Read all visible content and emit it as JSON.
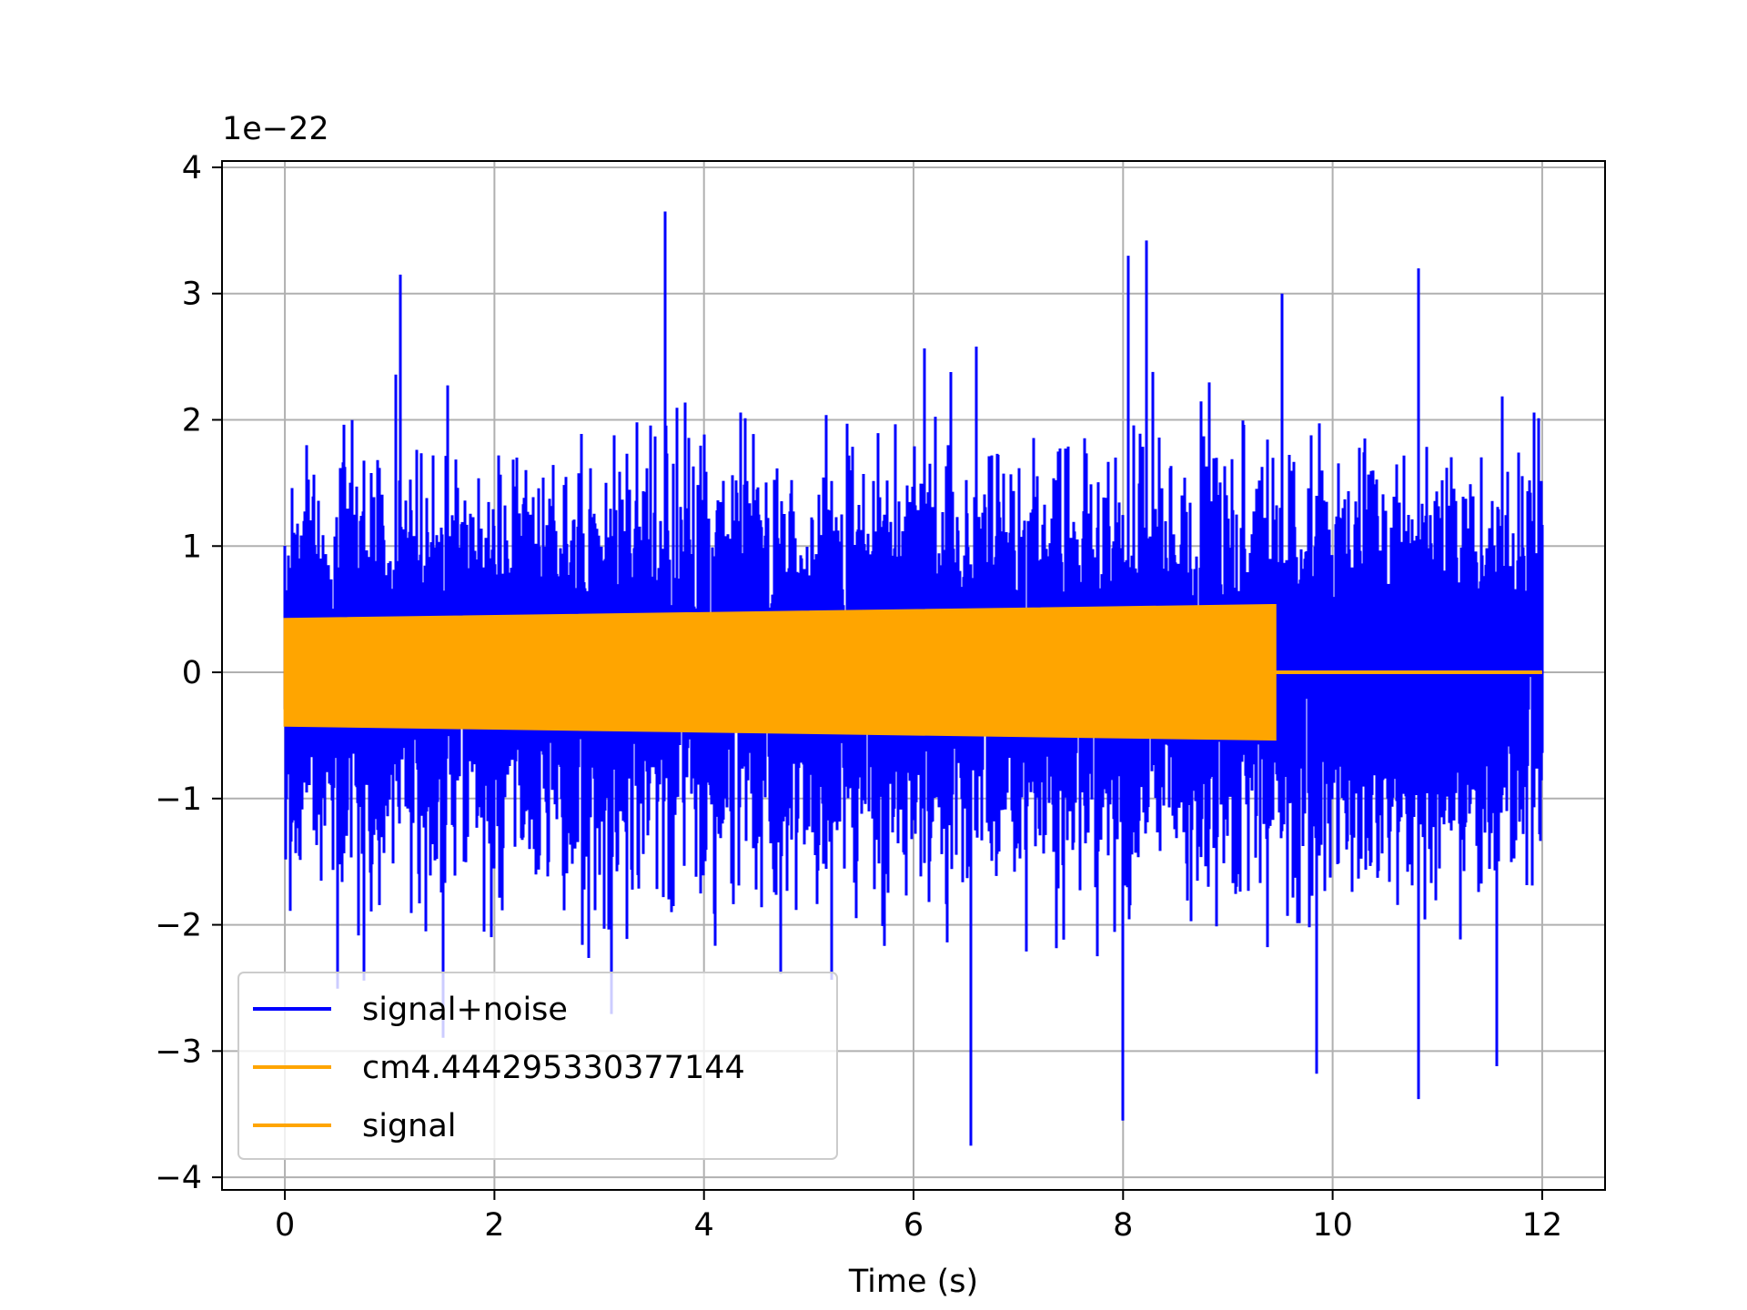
{
  "chart_data": {
    "type": "line",
    "title": "",
    "xlabel": "Time (s)",
    "ylabel": "",
    "y_offset_label": "1e−22",
    "xlim": [
      -0.6,
      12.6
    ],
    "ylim": [
      -4.1,
      4.05
    ],
    "x_ticks": [
      0,
      2,
      4,
      6,
      8,
      10,
      12
    ],
    "x_tick_labels": [
      "0",
      "2",
      "4",
      "6",
      "8",
      "10",
      "12"
    ],
    "y_ticks": [
      -4,
      -3,
      -2,
      -1,
      0,
      1,
      2,
      3,
      4
    ],
    "y_tick_labels": [
      "−4",
      "−3",
      "−2",
      "−1",
      "0",
      "1",
      "2",
      "3",
      "4"
    ],
    "grid": true,
    "legend_position": "lower-left",
    "series": [
      {
        "name": "signal+noise",
        "color": "#0000ff",
        "x_range": [
          0,
          12
        ],
        "envelope_typical": [
          -2.0,
          2.0
        ],
        "peak_max": [
          3.65,
          3.6
        ],
        "peak_min": [
          -3.75,
          6.55
        ],
        "notable_extremes": [
          {
            "x": 1.1,
            "y": 3.15
          },
          {
            "x": 3.63,
            "y": 3.65
          },
          {
            "x": 8.05,
            "y": 3.3
          },
          {
            "x": 8.22,
            "y": 3.42
          },
          {
            "x": 10.82,
            "y": 3.2
          },
          {
            "x": 6.55,
            "y": -3.75
          },
          {
            "x": 8.0,
            "y": -3.55
          },
          {
            "x": 10.82,
            "y": -3.38
          },
          {
            "x": 9.85,
            "y": -3.18
          },
          {
            "x": 11.57,
            "y": -3.12
          }
        ]
      },
      {
        "name": "cm4.444295330377144",
        "color": "#ffa500",
        "x_range": [
          0,
          9.45
        ],
        "amplitude_start": 0.42,
        "amplitude_end": 0.53,
        "after_end_value": 0
      },
      {
        "name": "signal",
        "color": "#ffa500",
        "x_range": [
          0,
          12
        ],
        "amplitude_start": 0.42,
        "amplitude_end": 0.53,
        "chirp_end_x": 9.45,
        "after_end_value": 0
      }
    ]
  }
}
